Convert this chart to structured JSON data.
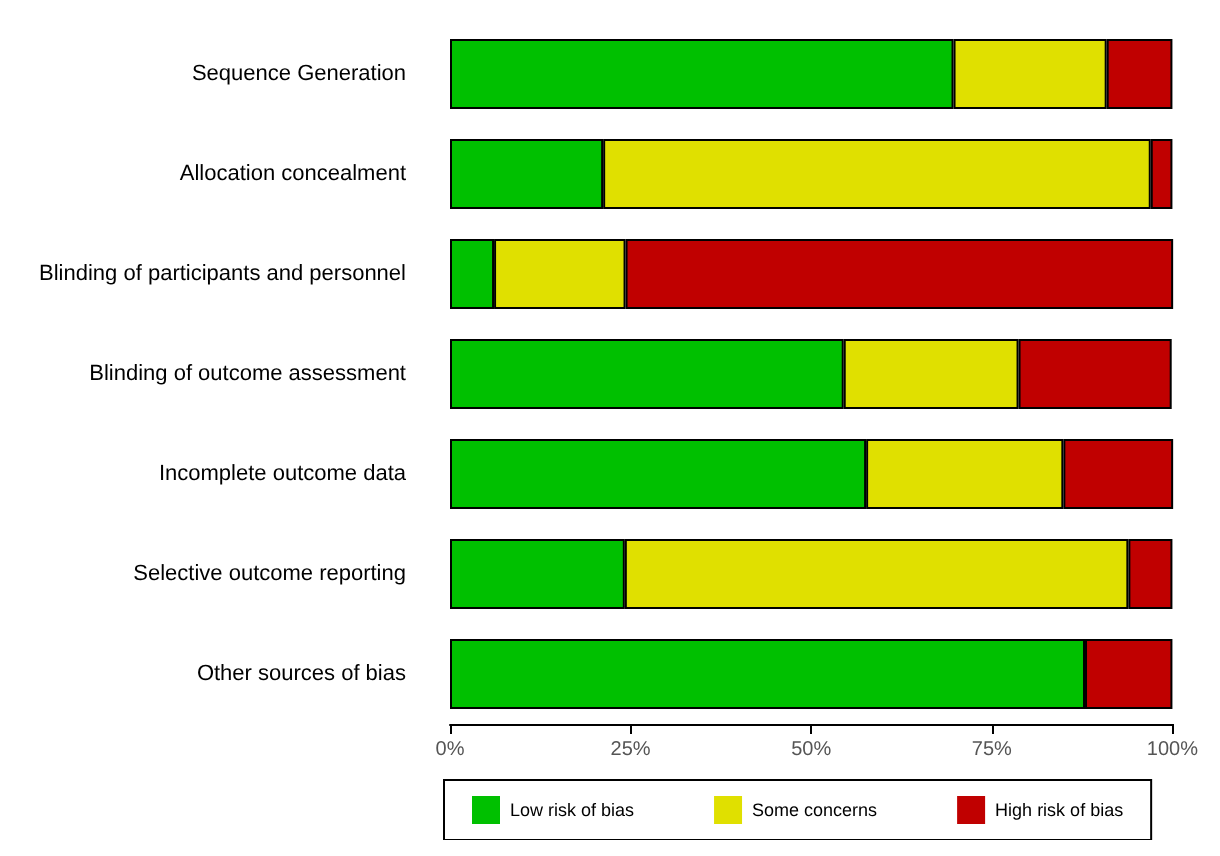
{
  "chart_data": {
    "type": "bar",
    "orientation": "horizontal",
    "stacked": true,
    "categories": [
      "Sequence Generation",
      "Allocation concealment",
      "Blinding of participants and personnel",
      "Blinding of outcome assessment",
      "Incomplete outcome data",
      "Selective outcome reporting",
      "Other sources of bias"
    ],
    "series": [
      {
        "name": "Low risk of bias",
        "color": "#00c000",
        "values": [
          69.7,
          21.2,
          6.1,
          54.5,
          57.6,
          24.2,
          87.9
        ]
      },
      {
        "name": "Some concerns",
        "color": "#e0e000",
        "values": [
          21.2,
          75.8,
          18.2,
          24.2,
          27.3,
          69.7,
          null
        ]
      },
      {
        "name": "High risk of bias",
        "color": "#c00000",
        "values": [
          9.1,
          3.0,
          75.8,
          21.2,
          15.2,
          6.1,
          12.1
        ]
      }
    ],
    "xlim": [
      0,
      100
    ],
    "xticks": [
      {
        "value": 0,
        "label": "0%"
      },
      {
        "value": 25,
        "label": "25%"
      },
      {
        "value": 50,
        "label": "50%"
      },
      {
        "value": 75,
        "label": "75%"
      },
      {
        "value": 100,
        "label": "100%"
      }
    ],
    "grid": false,
    "legend": "bottom"
  }
}
